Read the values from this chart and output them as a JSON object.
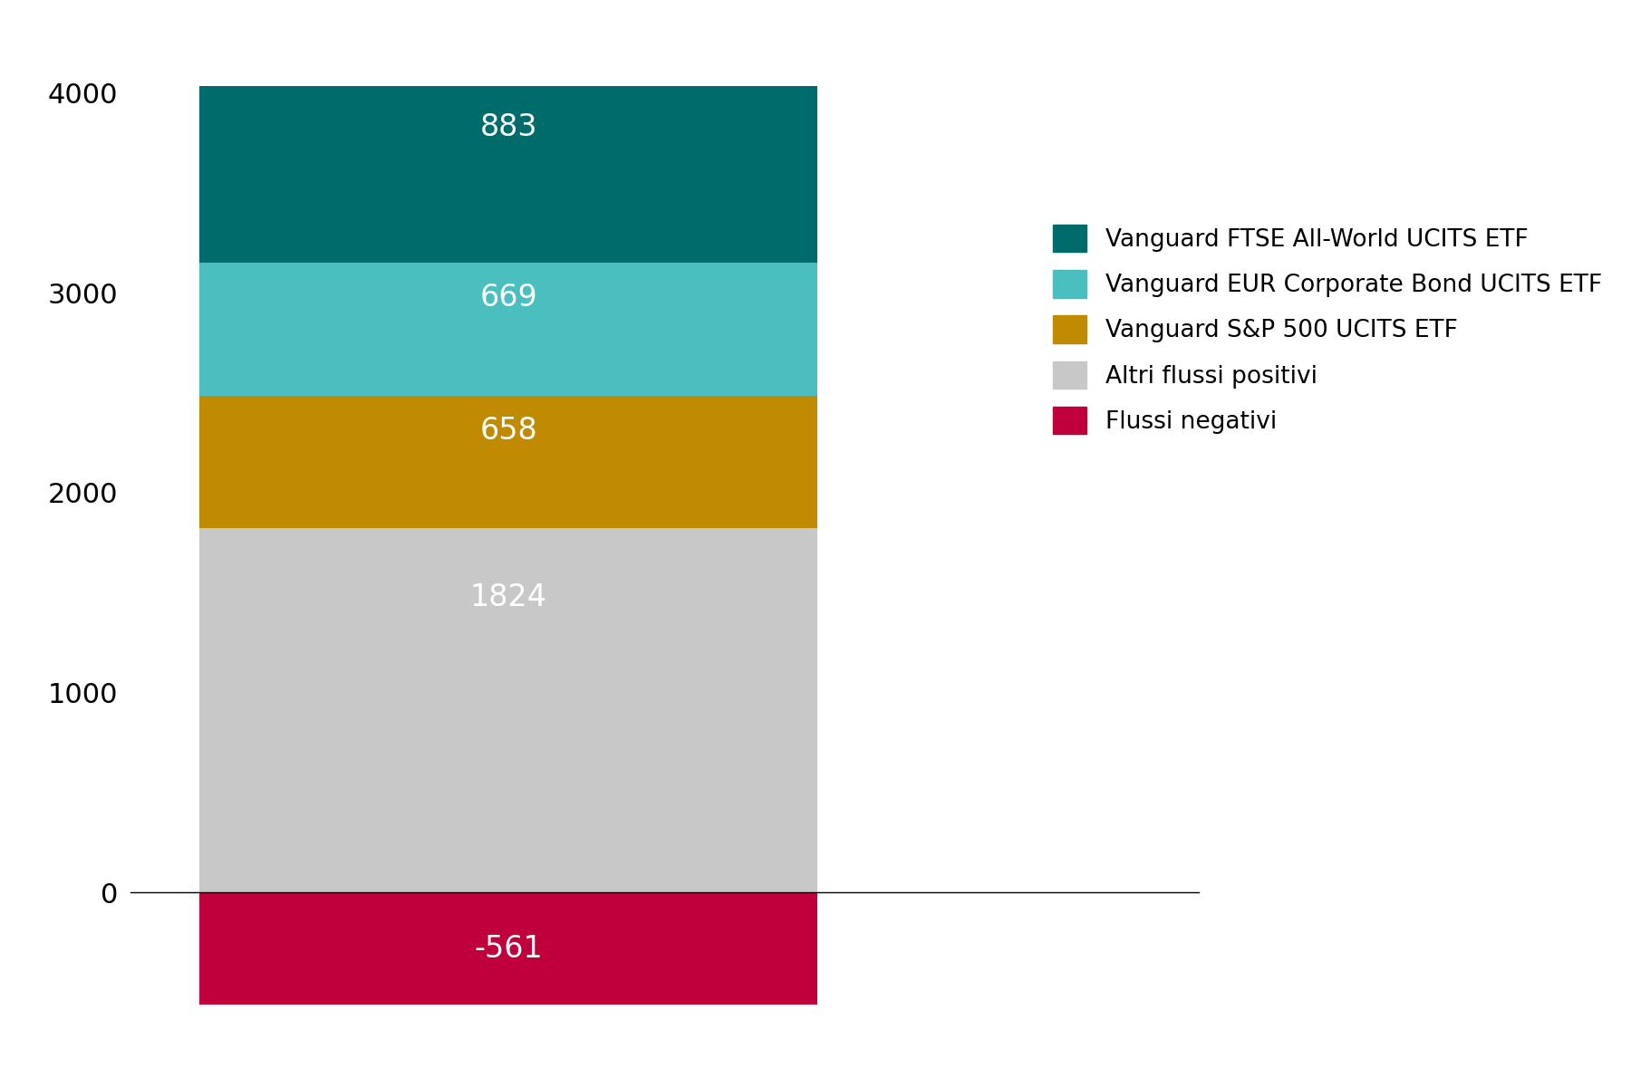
{
  "segments": [
    {
      "label": "Flussi negativi",
      "value": -561,
      "color": "#c0003c"
    },
    {
      "label": "Altri flussi positivi",
      "value": 1824,
      "color": "#c8c8c8"
    },
    {
      "label": "Vanguard S&P 500 UCITS ETF",
      "value": 658,
      "color": "#c08b00"
    },
    {
      "label": "Vanguard EUR Corporate Bond UCITS ETF",
      "value": 669,
      "color": "#4bbfbf"
    },
    {
      "label": "Vanguard FTSE All-World UCITS ETF",
      "value": 883,
      "color": "#006b6b"
    }
  ],
  "legend_labels": [
    "Vanguard FTSE All-World UCITS ETF",
    "Vanguard EUR Corporate Bond UCITS ETF",
    "Vanguard S&P 500 UCITS ETF",
    "Altri flussi positivi",
    "Flussi negativi"
  ],
  "legend_colors": [
    "#006b6b",
    "#4bbfbf",
    "#c08b00",
    "#c8c8c8",
    "#c0003c"
  ],
  "yticks": [
    0,
    1000,
    2000,
    3000,
    4000
  ],
  "ylim": [
    -700,
    4300
  ],
  "background_color": "#ffffff",
  "bar_width": 0.85,
  "label_fontsize": 24,
  "legend_fontsize": 19,
  "tick_fontsize": 22
}
